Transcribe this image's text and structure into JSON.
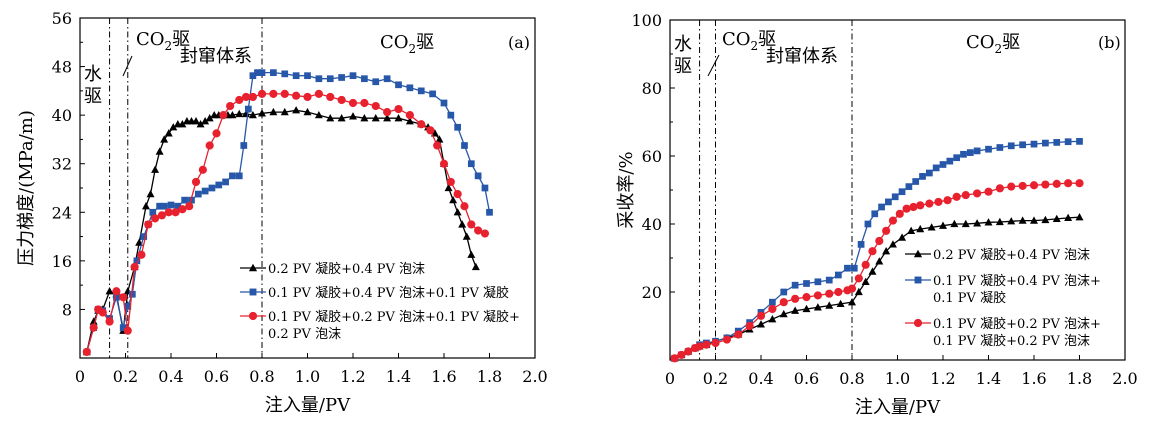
{
  "figure_title": "",
  "chart_data": [
    {
      "type": "line",
      "panel_label": "(a)",
      "xlabel": "注入量/PV",
      "ylabel": "压力梯度/(MPa/m)",
      "xlim": [
        0,
        2.0
      ],
      "ylim": [
        0,
        56
      ],
      "xticks": [
        "0",
        "0.2",
        "0.4",
        "0.6",
        "0.8",
        "1.0",
        "1.2",
        "1.4",
        "1.6",
        "1.8",
        "2.0"
      ],
      "yticks": [
        "8",
        "16",
        "24",
        "32",
        "40",
        "48",
        "56"
      ],
      "stage_lines": [
        0.13,
        0.21,
        0.8
      ],
      "stages": {
        "water": "水驱",
        "co2_first": "CO₂驱",
        "plugging": "封窜体系",
        "co2_second": "CO₂驱"
      },
      "legend_position": "lower-center",
      "series": [
        {
          "name": "0.2 PV 凝胶+0.4 PV 泡沫",
          "marker": "triangle",
          "color": "#000000",
          "x": [
            0.03,
            0.06,
            0.08,
            0.1,
            0.13,
            0.16,
            0.19,
            0.21,
            0.24,
            0.26,
            0.29,
            0.31,
            0.33,
            0.35,
            0.37,
            0.39,
            0.41,
            0.43,
            0.45,
            0.47,
            0.49,
            0.51,
            0.53,
            0.55,
            0.57,
            0.59,
            0.61,
            0.63,
            0.65,
            0.67,
            0.7,
            0.73,
            0.76,
            0.8,
            0.85,
            0.9,
            0.95,
            1.0,
            1.05,
            1.1,
            1.15,
            1.2,
            1.25,
            1.3,
            1.35,
            1.4,
            1.45,
            1.5,
            1.53,
            1.56,
            1.58,
            1.6,
            1.62,
            1.64,
            1.66,
            1.68,
            1.7,
            1.72,
            1.74
          ],
          "y": [
            1,
            6,
            7.8,
            8,
            11,
            10.5,
            4.5,
            11,
            15,
            19,
            25,
            27,
            31,
            34,
            36,
            37,
            38,
            38.5,
            38.5,
            39,
            39,
            39,
            38.5,
            39,
            39.5,
            40,
            40,
            40,
            40,
            40,
            40.2,
            40.2,
            40,
            40.3,
            40.5,
            40.5,
            40.8,
            40.5,
            40,
            39.5,
            39.5,
            39.8,
            39.5,
            39.5,
            39.5,
            39.5,
            39,
            38.5,
            38,
            37,
            36,
            32,
            28,
            26,
            24,
            22,
            20,
            17,
            15
          ]
        },
        {
          "name": "0.1 PV 凝胶+0.4 PV 泡沫+0.1 PV 凝胶",
          "marker": "square",
          "color": "#2757a8",
          "x": [
            0.03,
            0.06,
            0.08,
            0.1,
            0.13,
            0.16,
            0.19,
            0.21,
            0.23,
            0.25,
            0.28,
            0.3,
            0.32,
            0.35,
            0.37,
            0.4,
            0.43,
            0.46,
            0.49,
            0.52,
            0.55,
            0.58,
            0.61,
            0.64,
            0.67,
            0.7,
            0.72,
            0.74,
            0.76,
            0.78,
            0.8,
            0.85,
            0.9,
            0.95,
            1.0,
            1.05,
            1.1,
            1.15,
            1.2,
            1.25,
            1.3,
            1.35,
            1.4,
            1.45,
            1.5,
            1.55,
            1.6,
            1.63,
            1.66,
            1.69,
            1.72,
            1.75,
            1.78,
            1.8
          ],
          "y": [
            1,
            5,
            8,
            7.8,
            6.5,
            10,
            5,
            8.5,
            10.5,
            16,
            20,
            22,
            24,
            25,
            25,
            25.2,
            25,
            26,
            26,
            27,
            27.5,
            28,
            28.5,
            29,
            30,
            30,
            35,
            41,
            46.5,
            47,
            47,
            47,
            46.8,
            46.5,
            46.5,
            46,
            46,
            46.2,
            46.5,
            46,
            45.5,
            46,
            45,
            44.5,
            44,
            43.5,
            42,
            40,
            38,
            35,
            32,
            30,
            28,
            24
          ]
        },
        {
          "name": "0.1 PV 凝胶+0.2 PV 泡沫+0.1 PV 凝胶+0.2 PV 泡沫",
          "marker": "circle",
          "color": "#e8212e",
          "x": [
            0.03,
            0.06,
            0.08,
            0.1,
            0.13,
            0.16,
            0.19,
            0.21,
            0.24,
            0.27,
            0.3,
            0.33,
            0.36,
            0.39,
            0.42,
            0.45,
            0.48,
            0.51,
            0.54,
            0.57,
            0.6,
            0.63,
            0.66,
            0.7,
            0.73,
            0.76,
            0.8,
            0.85,
            0.9,
            0.95,
            1.0,
            1.05,
            1.1,
            1.15,
            1.2,
            1.25,
            1.3,
            1.35,
            1.4,
            1.45,
            1.5,
            1.54,
            1.57,
            1.6,
            1.63,
            1.66,
            1.69,
            1.72,
            1.75,
            1.78
          ],
          "y": [
            1,
            5,
            8,
            7.5,
            6,
            11,
            10,
            4.5,
            15,
            17,
            22,
            23,
            23.5,
            24,
            24,
            24.5,
            25,
            29,
            31,
            35,
            37,
            40,
            41.5,
            42.5,
            43,
            43,
            43.5,
            43.5,
            43.5,
            43.2,
            43,
            43.5,
            43,
            42.5,
            42,
            42,
            41.5,
            40.5,
            41,
            40,
            38.5,
            37.5,
            35,
            32,
            29,
            27,
            25,
            22,
            21,
            20.5
          ]
        }
      ]
    },
    {
      "type": "line",
      "panel_label": "(b)",
      "xlabel": "注入量/PV",
      "ylabel": "采收率/%",
      "xlim": [
        0,
        2.0
      ],
      "ylim": [
        0,
        100
      ],
      "xticks": [
        "0",
        "0.2",
        "0.4",
        "0.6",
        "0.8",
        "1.0",
        "1.2",
        "1.4",
        "1.6",
        "1.8",
        "2.0"
      ],
      "yticks": [
        "20",
        "40",
        "60",
        "80",
        "100"
      ],
      "stage_lines": [
        0.13,
        0.2,
        0.8
      ],
      "stages": {
        "water": "水驱",
        "co2_first": "CO₂驱",
        "plugging": "封窜体系",
        "co2_second": "CO₂驱"
      },
      "legend_position": "right",
      "series": [
        {
          "name": "0.2 PV 凝胶+0.4 PV 泡沫",
          "marker": "triangle",
          "color": "#000000",
          "x": [
            0.02,
            0.05,
            0.08,
            0.11,
            0.13,
            0.16,
            0.2,
            0.25,
            0.3,
            0.35,
            0.4,
            0.45,
            0.5,
            0.55,
            0.6,
            0.65,
            0.7,
            0.75,
            0.8,
            0.83,
            0.86,
            0.89,
            0.92,
            0.95,
            0.98,
            1.02,
            1.06,
            1.1,
            1.15,
            1.2,
            1.25,
            1.3,
            1.35,
            1.4,
            1.45,
            1.5,
            1.55,
            1.6,
            1.65,
            1.7,
            1.75,
            1.8
          ],
          "y": [
            0.5,
            1.5,
            2.5,
            3.5,
            4,
            4.5,
            5.5,
            6.5,
            7.5,
            9,
            10.5,
            12,
            13.5,
            14.5,
            15,
            15.5,
            16,
            16.5,
            17,
            20,
            23,
            26,
            29,
            32,
            34,
            36,
            38,
            38.5,
            39,
            39.5,
            40,
            40,
            40.2,
            40.5,
            40.6,
            40.8,
            41,
            41,
            41.2,
            41.5,
            41.8,
            42
          ]
        },
        {
          "name": "0.1 PV 凝胶+0.4 PV 泡沫+0.1 PV 凝胶",
          "marker": "square",
          "color": "#2757a8",
          "x": [
            0.02,
            0.05,
            0.08,
            0.11,
            0.13,
            0.16,
            0.2,
            0.25,
            0.3,
            0.35,
            0.4,
            0.45,
            0.5,
            0.55,
            0.6,
            0.65,
            0.7,
            0.74,
            0.78,
            0.81,
            0.84,
            0.87,
            0.9,
            0.93,
            0.96,
            0.99,
            1.02,
            1.05,
            1.08,
            1.11,
            1.14,
            1.17,
            1.2,
            1.23,
            1.26,
            1.29,
            1.32,
            1.35,
            1.4,
            1.45,
            1.5,
            1.55,
            1.6,
            1.65,
            1.7,
            1.75,
            1.8
          ],
          "y": [
            0.5,
            1.5,
            2.5,
            3.5,
            4.5,
            5,
            5.5,
            6.5,
            8.5,
            11,
            14,
            17,
            20,
            22,
            22.5,
            23,
            23.5,
            25,
            27,
            27,
            34,
            40,
            43,
            45,
            46.5,
            48,
            49.5,
            51,
            52.5,
            54,
            55,
            56.5,
            57.5,
            58.5,
            59.5,
            60.5,
            61,
            61.5,
            62,
            62.5,
            63,
            63.3,
            63.5,
            63.8,
            64,
            64.2,
            64.3
          ]
        },
        {
          "name": "0.1 PV 凝胶+0.2 PV 泡沫+0.1 PV 凝胶+0.2 PV 泡沫",
          "marker": "circle",
          "color": "#e8212e",
          "x": [
            0.02,
            0.05,
            0.08,
            0.11,
            0.13,
            0.16,
            0.2,
            0.25,
            0.3,
            0.35,
            0.4,
            0.45,
            0.5,
            0.55,
            0.6,
            0.65,
            0.7,
            0.74,
            0.78,
            0.8,
            0.83,
            0.86,
            0.89,
            0.92,
            0.95,
            0.98,
            1.01,
            1.04,
            1.07,
            1.1,
            1.14,
            1.18,
            1.22,
            1.26,
            1.3,
            1.35,
            1.4,
            1.45,
            1.5,
            1.55,
            1.6,
            1.65,
            1.7,
            1.75,
            1.8
          ],
          "y": [
            0.5,
            1.5,
            2.5,
            3.5,
            4,
            4.5,
            5,
            6,
            7.5,
            10,
            13,
            15,
            17,
            18,
            18.5,
            19,
            19.5,
            20,
            20.5,
            21,
            24,
            28,
            32,
            35,
            38,
            41,
            43,
            44.5,
            45,
            45.5,
            46,
            46.5,
            47,
            48,
            48.5,
            49,
            49.5,
            50.5,
            51,
            51.2,
            51.4,
            51.6,
            51.8,
            52,
            52
          ]
        }
      ]
    }
  ],
  "legend_a": [
    {
      "lines": [
        "0.2 PV 凝胶+0.4 PV 泡沫"
      ]
    },
    {
      "lines": [
        "0.1 PV 凝胶+0.4 PV 泡沫+0.1 PV 凝胶"
      ]
    },
    {
      "lines": [
        "0.1 PV 凝胶+0.2 PV 泡沫+0.1 PV 凝胶+",
        "0.2 PV 泡沫"
      ]
    }
  ],
  "legend_b": [
    {
      "lines": [
        "0.2 PV 凝胶+0.4 PV 泡沫"
      ]
    },
    {
      "lines": [
        "0.1 PV 凝胶+0.4 PV 泡沫+",
        "0.1 PV 凝胶"
      ]
    },
    {
      "lines": [
        "0.1 PV 凝胶+0.2 PV 泡沫+",
        "0.1 PV 凝胶+0.2 PV 泡沫"
      ]
    }
  ]
}
